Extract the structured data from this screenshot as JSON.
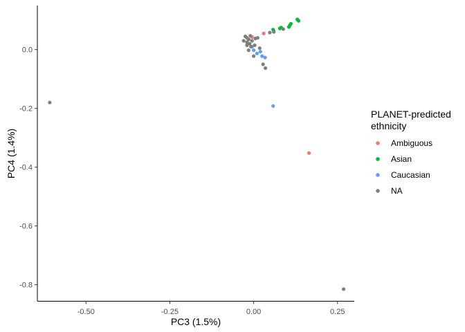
{
  "chart_data": {
    "type": "scatter",
    "xlabel": "PC3 (1.5%)",
    "ylabel": "PC4 (1.4%)",
    "xlim": [
      -0.645,
      0.3
    ],
    "ylim": [
      -0.855,
      0.15
    ],
    "xticks": [
      -0.5,
      -0.25,
      0.0,
      0.25
    ],
    "xtick_labels": [
      "-0.50",
      "-0.25",
      "0.00",
      "0.25"
    ],
    "yticks": [
      0.0,
      -0.2,
      -0.4,
      -0.6,
      -0.8
    ],
    "ytick_labels": [
      "0.0",
      "-0.2",
      "-0.4",
      "-0.6",
      "-0.8"
    ],
    "grid": false,
    "legend": {
      "title_lines": [
        "PLANET-predicted",
        "ethnicity"
      ],
      "position": "right"
    },
    "series": [
      {
        "name": "Ambiguous",
        "color": "#F8766D",
        "points": [
          [
            -0.005,
            0.043
          ],
          [
            0.03,
            0.055
          ],
          [
            0.165,
            -0.352
          ]
        ]
      },
      {
        "name": "Asian",
        "color": "#00BA38",
        "points": [
          [
            0.058,
            0.068
          ],
          [
            0.06,
            0.063
          ],
          [
            0.078,
            0.072
          ],
          [
            0.082,
            0.075
          ],
          [
            0.105,
            0.077
          ],
          [
            0.108,
            0.083
          ],
          [
            0.111,
            0.088
          ],
          [
            0.13,
            0.103
          ],
          [
            0.134,
            0.098
          ]
        ]
      },
      {
        "name": "Caucasian",
        "color": "#619CFF",
        "points": [
          [
            -0.005,
            0.01
          ],
          [
            0.0,
            -0.002
          ],
          [
            0.01,
            -0.013
          ],
          [
            0.02,
            -0.007
          ],
          [
            0.025,
            -0.022
          ],
          [
            0.034,
            -0.027
          ],
          [
            0.058,
            -0.192
          ]
        ]
      },
      {
        "name": "NA",
        "color": "#7F7F7F",
        "points": [
          [
            -0.608,
            -0.18
          ],
          [
            -0.03,
            0.03
          ],
          [
            -0.025,
            0.045
          ],
          [
            -0.02,
            0.04
          ],
          [
            -0.02,
            0.025
          ],
          [
            -0.02,
            0.015
          ],
          [
            -0.015,
            0.035
          ],
          [
            -0.012,
            0.02
          ],
          [
            -0.01,
            0.047
          ],
          [
            -0.008,
            0.01
          ],
          [
            -0.005,
            0.03
          ],
          [
            -0.015,
            -0.002
          ],
          [
            0.005,
            0.038
          ],
          [
            0.012,
            0.04
          ],
          [
            0.003,
            0.015
          ],
          [
            0.0,
            -0.022
          ],
          [
            0.018,
            0.005
          ],
          [
            0.028,
            -0.05
          ],
          [
            0.035,
            -0.063
          ],
          [
            0.048,
            0.058
          ],
          [
            0.06,
            0.06
          ],
          [
            0.088,
            0.07
          ],
          [
            0.268,
            -0.815
          ]
        ]
      }
    ]
  }
}
